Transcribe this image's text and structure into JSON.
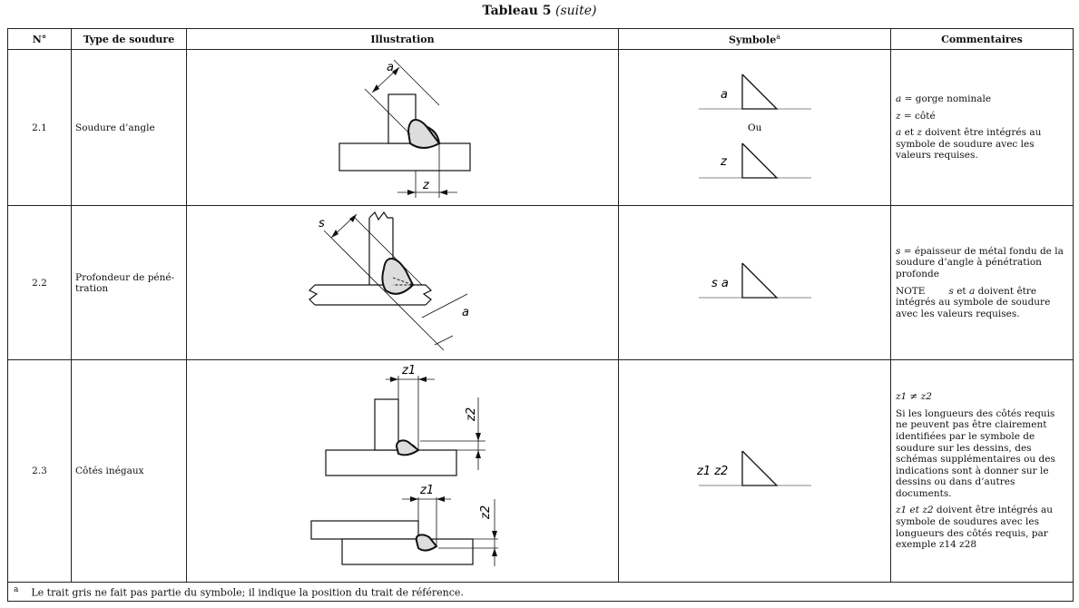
{
  "title": {
    "bold": "Tableau 5",
    "italic": "(suite)"
  },
  "headers": {
    "num": "N°",
    "type": "Type de soudure",
    "illustration": "Illustration",
    "symbol": "Symbole",
    "symbol_sup": "a",
    "comments": "Commentaires"
  },
  "rows": [
    {
      "num": "2.1",
      "type": "Soudure d’angle",
      "symbols": {
        "top": "a",
        "separator": "Ou",
        "bottom": "z"
      },
      "illustration_labels": {
        "throat": "a",
        "leg": "z"
      },
      "comments": {
        "c1_var": "a",
        "c1_text": " = gorge nominale",
        "c2_var": "z",
        "c2_text": " = côté",
        "c3_var1": "a",
        "c3_mid": " et ",
        "c3_var2": "z",
        "c3_text": " doivent être intégrés au symbole de soudure avec les valeurs requises."
      }
    },
    {
      "num": "2.2",
      "type": "Profondeur de péné-tration",
      "symbols": {
        "main": "s a"
      },
      "illustration_labels": {
        "s": "s",
        "a": "a"
      },
      "comments": {
        "c1_var": "s",
        "c1_text": " = épaisseur de métal fondu de la soudure d’angle à pénétration profonde",
        "note_label": "NOTE",
        "note_var1": "s",
        "note_mid": " et ",
        "note_var2": "a",
        "note_text": " doivent être intégrés au symbole de soudure avec les valeurs requises."
      }
    },
    {
      "num": "2.3",
      "type": "Côtés inégaux",
      "symbols": {
        "main": "z1 z2"
      },
      "illustration_labels": {
        "z1": "z1",
        "z2": "z2"
      },
      "comments": {
        "c1": "z1 ≠ z2",
        "c2": "Si les longueurs des côtés requis ne peuvent pas être clairement identifiées par le symbole de soudure sur les dessins, des schémas supplémentaires ou des indications sont à donner sur le dessins ou dans d’autres documents.",
        "c3_lead": "z1 et z2",
        "c3_text": " doivent être intégrés au symbole de soudures avec les longueurs des côtés requis, par exemple ",
        "c3_example": "z14 z28"
      }
    }
  ],
  "footnote": {
    "mark": "a",
    "text": "Le trait gris ne fait pas partie du symbole; il indique la position du trait de référence."
  }
}
